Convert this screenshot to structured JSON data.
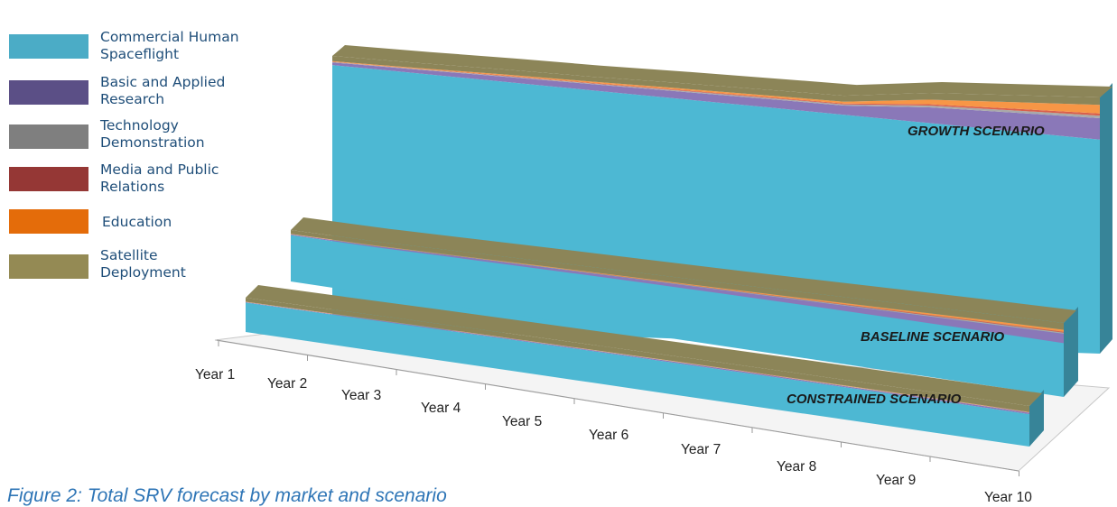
{
  "chart_data": {
    "type": "area",
    "subtype": "3d-stacked-area",
    "categories": [
      "Year 1",
      "Year 2",
      "Year 3",
      "Year 4",
      "Year 5",
      "Year 6",
      "Year 7",
      "Year 8",
      "Year 9",
      "Year 10"
    ],
    "series_names": [
      "Commercial Human Spaceflight",
      "Basic and Applied Research",
      "Technology Demonstration",
      "Media and Public Relations",
      "Education",
      "Satellite Deployment"
    ],
    "colors": {
      "Commercial Human Spaceflight": "#4db8d3",
      "Basic and Applied Research": "#8a78b8",
      "Technology Demonstration": "#a9a9a9",
      "Media and Public Relations": "#d9604c",
      "Education": "#f79646",
      "Satellite Deployment": "#8c8558"
    },
    "legend_colors": {
      "Commercial Human Spaceflight": "#4bacc6",
      "Basic and Applied Research": "#5b4f86",
      "Technology Demonstration": "#7f7f7f",
      "Media and Public Relations": "#953735",
      "Education": "#e46c0a",
      "Satellite Deployment": "#948a54"
    },
    "scenarios": [
      {
        "name": "GROWTH SCENARIO",
        "series": [
          {
            "name": "Commercial Human Spaceflight",
            "values": [
              100,
              100,
              100,
              100,
              100,
              100,
              100,
              100,
              100,
              100
            ]
          },
          {
            "name": "Basic and Applied Research",
            "values": [
              1,
              1.5,
              2,
              2.5,
              3,
              3.5,
              4,
              7,
              8.5,
              10
            ]
          },
          {
            "name": "Technology Demonstration",
            "values": [
              0.2,
              0.2,
              0.3,
              0.3,
              0.4,
              0.5,
              0.5,
              0.8,
              1,
              1.2
            ]
          },
          {
            "name": "Media and Public Relations",
            "values": [
              0.1,
              0.1,
              0.2,
              0.2,
              0.3,
              0.3,
              0.4,
              0.6,
              0.8,
              1
            ]
          },
          {
            "name": "Education",
            "values": [
              0.2,
              0.3,
              0.4,
              0.5,
              0.6,
              0.7,
              0.8,
              2,
              3,
              4
            ]
          },
          {
            "name": "Satellite Deployment",
            "values": [
              2,
              2,
              2,
              2,
              2.2,
              2.4,
              2.6,
              3,
              3.2,
              3.5
            ]
          }
        ]
      },
      {
        "name": "BASELINE SCENARIO",
        "series": [
          {
            "name": "Commercial Human Spaceflight",
            "values": [
              30,
              28,
              27,
              26,
              25,
              24,
              23,
              22,
              21,
              20
            ]
          },
          {
            "name": "Basic and Applied Research",
            "values": [
              0.5,
              0.7,
              0.9,
              1.1,
              1.3,
              1.6,
              2,
              2.5,
              3,
              3.5
            ]
          },
          {
            "name": "Technology Demonstration",
            "values": [
              0.1,
              0.1,
              0.1,
              0.2,
              0.2,
              0.2,
              0.3,
              0.3,
              0.4,
              0.4
            ]
          },
          {
            "name": "Media and Public Relations",
            "values": [
              0.1,
              0.1,
              0.1,
              0.1,
              0.2,
              0.2,
              0.2,
              0.3,
              0.3,
              0.3
            ]
          },
          {
            "name": "Education",
            "values": [
              0.1,
              0.2,
              0.2,
              0.3,
              0.3,
              0.4,
              0.5,
              0.6,
              0.7,
              0.8
            ]
          },
          {
            "name": "Satellite Deployment",
            "values": [
              2.5,
              2.5,
              2.5,
              2.5,
              2.5,
              2.5,
              2.5,
              2.5,
              2.5,
              2.5
            ]
          }
        ]
      },
      {
        "name": "CONSTRAINED SCENARIO",
        "series": [
          {
            "name": "Commercial Human Spaceflight",
            "values": [
              18,
              17.5,
              17,
              16.5,
              16,
              15.5,
              15,
              14.5,
              14,
              13.5
            ]
          },
          {
            "name": "Basic and Applied Research",
            "values": [
              0.3,
              0.3,
              0.4,
              0.4,
              0.4,
              0.5,
              0.5,
              0.5,
              0.6,
              0.6
            ]
          },
          {
            "name": "Technology Demonstration",
            "values": [
              0.05,
              0.05,
              0.05,
              0.05,
              0.1,
              0.1,
              0.1,
              0.1,
              0.1,
              0.1
            ]
          },
          {
            "name": "Media and Public Relations",
            "values": [
              0.05,
              0.05,
              0.05,
              0.05,
              0.05,
              0.05,
              0.1,
              0.1,
              0.1,
              0.1
            ]
          },
          {
            "name": "Education",
            "values": [
              0.1,
              0.1,
              0.1,
              0.1,
              0.1,
              0.1,
              0.1,
              0.1,
              0.1,
              0.1
            ]
          },
          {
            "name": "Satellite Deployment",
            "values": [
              2.5,
              2.5,
              2.5,
              2.5,
              2.5,
              2.5,
              2.5,
              2.5,
              2.5,
              2.5
            ]
          }
        ]
      }
    ],
    "legend_position": "top-left",
    "grid": false,
    "caption": "Figure 2: Total SRV forecast by market and scenario"
  },
  "legend": {
    "items": [
      {
        "line1": "Commercial Human",
        "line2": "Spaceflight",
        "color": "#4bacc6"
      },
      {
        "line1": "Basic and Applied",
        "line2": "Research",
        "color": "#5b4f86"
      },
      {
        "line1": "Technology",
        "line2": "Demonstration",
        "color": "#7f7f7f"
      },
      {
        "line1": "Media and Public",
        "line2": "Relations",
        "color": "#953735"
      },
      {
        "line1": "Education",
        "line2": "",
        "color": "#e46c0a"
      },
      {
        "line1": "Satellite",
        "line2": "Deployment",
        "color": "#948a54"
      }
    ]
  },
  "caption": "Figure 2: Total SRV forecast by market and scenario"
}
